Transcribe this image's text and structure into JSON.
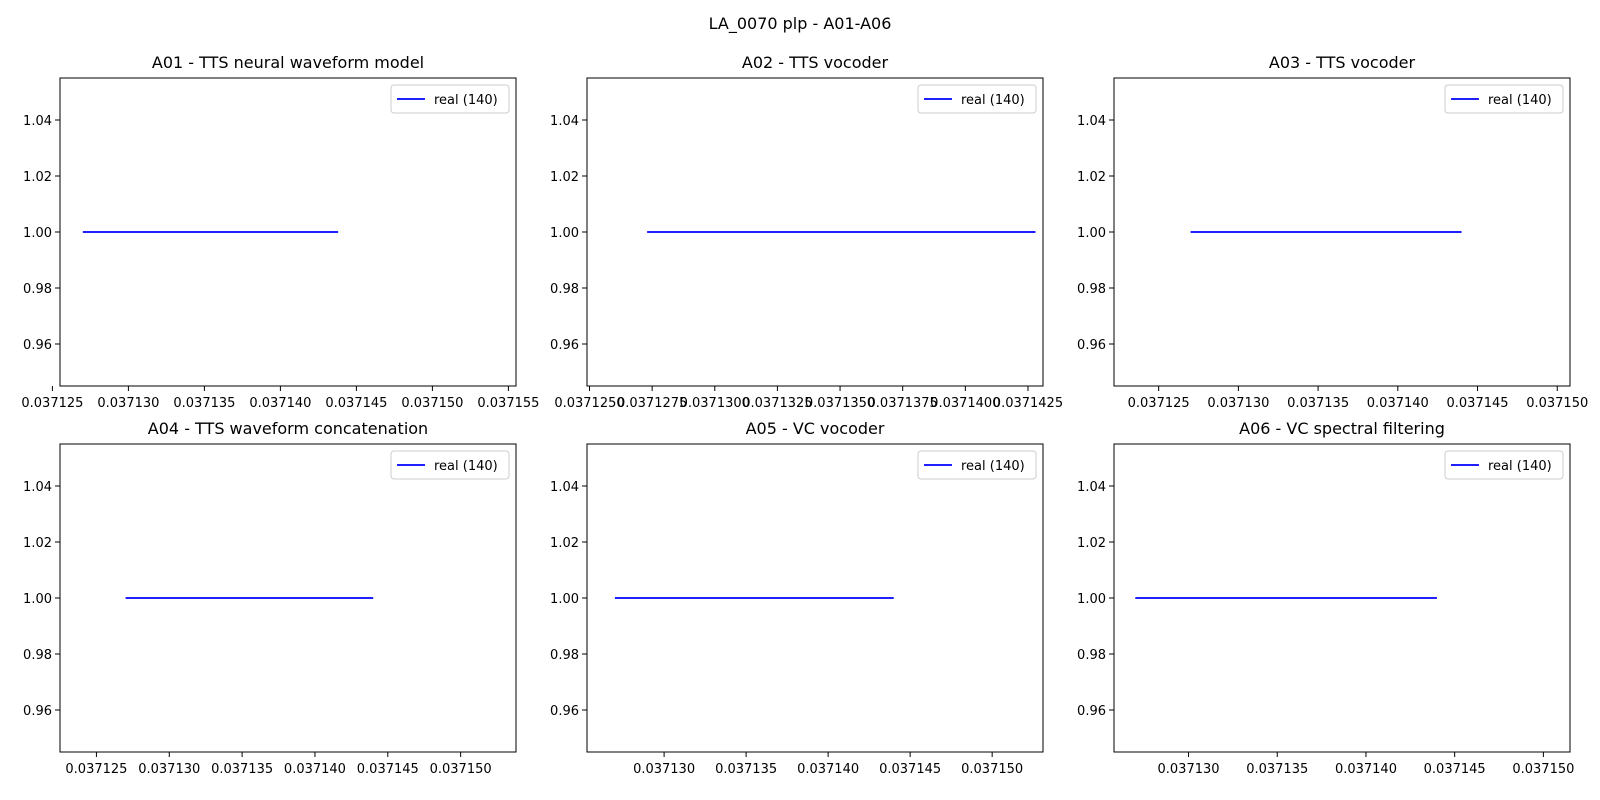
{
  "figure": {
    "title": "LA_0070 plp - A01-A06"
  },
  "chart_data": [
    {
      "type": "line",
      "title": "A01 - TTS neural waveform model",
      "xlabel": "",
      "ylabel": "",
      "xlim": [
        0.0371255,
        0.0371555
      ],
      "ylim": [
        0.945,
        1.055
      ],
      "x_ticks": [
        0.037125,
        0.03713,
        0.037135,
        0.03714,
        0.037145,
        0.03715,
        0.037155
      ],
      "x_tick_labels": [
        "0.037125",
        "0.037130",
        "0.037135",
        "0.037140",
        "0.037145",
        "0.037150",
        "0.037155"
      ],
      "y_ticks": [
        0.96,
        0.98,
        1.0,
        1.02,
        1.04
      ],
      "y_tick_labels": [
        "0.96",
        "0.98",
        "1.00",
        "1.02",
        "1.04"
      ],
      "grid": false,
      "legend": "top-right",
      "series": [
        {
          "name": "real (140)",
          "color": "#0000ff",
          "x": [
            0.037127,
            0.0371438
          ],
          "y": [
            1.0,
            1.0
          ]
        }
      ]
    },
    {
      "type": "line",
      "title": "A02 - TTS vocoder",
      "xlabel": "",
      "ylabel": "",
      "xlim": [
        0.0371249,
        0.0371431
      ],
      "ylim": [
        0.945,
        1.055
      ],
      "x_ticks": [
        0.037125,
        0.0371275,
        0.03713,
        0.0371325,
        0.037135,
        0.0371375,
        0.03714,
        0.0371425
      ],
      "x_tick_labels": [
        "0.0371250",
        "0.0371275",
        "0.0371300",
        "0.0371325",
        "0.0371350",
        "0.0371375",
        "0.0371400",
        "0.0371425"
      ],
      "y_ticks": [
        0.96,
        0.98,
        1.0,
        1.02,
        1.04
      ],
      "y_tick_labels": [
        "0.96",
        "0.98",
        "1.00",
        "1.02",
        "1.04"
      ],
      "grid": false,
      "legend": "top-right",
      "series": [
        {
          "name": "real (140)",
          "color": "#0000ff",
          "x": [
            0.0371273,
            0.0371428
          ],
          "y": [
            1.0,
            1.0
          ]
        }
      ]
    },
    {
      "type": "line",
      "title": "A03 - TTS vocoder",
      "xlabel": "",
      "ylabel": "",
      "xlim": [
        0.0371222,
        0.0371508
      ],
      "ylim": [
        0.945,
        1.055
      ],
      "x_ticks": [
        0.037125,
        0.03713,
        0.037135,
        0.03714,
        0.037145,
        0.03715
      ],
      "x_tick_labels": [
        "0.037125",
        "0.037130",
        "0.037135",
        "0.037140",
        "0.037145",
        "0.037150"
      ],
      "y_ticks": [
        0.96,
        0.98,
        1.0,
        1.02,
        1.04
      ],
      "y_tick_labels": [
        "0.96",
        "0.98",
        "1.00",
        "1.02",
        "1.04"
      ],
      "grid": false,
      "legend": "top-right",
      "series": [
        {
          "name": "real (140)",
          "color": "#0000ff",
          "x": [
            0.037127,
            0.037144
          ],
          "y": [
            1.0,
            1.0
          ]
        }
      ]
    },
    {
      "type": "line",
      "title": "A04 - TTS waveform concatenation",
      "xlabel": "",
      "ylabel": "",
      "xlim": [
        0.0371225,
        0.0371538
      ],
      "ylim": [
        0.945,
        1.055
      ],
      "x_ticks": [
        0.037125,
        0.03713,
        0.037135,
        0.03714,
        0.037145,
        0.03715
      ],
      "x_tick_labels": [
        "0.037125",
        "0.037130",
        "0.037135",
        "0.037140",
        "0.037145",
        "0.037150"
      ],
      "y_ticks": [
        0.96,
        0.98,
        1.0,
        1.02,
        1.04
      ],
      "y_tick_labels": [
        "0.96",
        "0.98",
        "1.00",
        "1.02",
        "1.04"
      ],
      "grid": false,
      "legend": "top-right",
      "series": [
        {
          "name": "real (140)",
          "color": "#0000ff",
          "x": [
            0.037127,
            0.037144
          ],
          "y": [
            1.0,
            1.0
          ]
        }
      ]
    },
    {
      "type": "line",
      "title": "A05 - VC vocoder",
      "xlabel": "",
      "ylabel": "",
      "xlim": [
        0.0371253,
        0.0371531
      ],
      "ylim": [
        0.945,
        1.055
      ],
      "x_ticks": [
        0.03713,
        0.037135,
        0.03714,
        0.037145,
        0.03715
      ],
      "x_tick_labels": [
        "0.037130",
        "0.037135",
        "0.037140",
        "0.037145",
        "0.037150"
      ],
      "y_ticks": [
        0.96,
        0.98,
        1.0,
        1.02,
        1.04
      ],
      "y_tick_labels": [
        "0.96",
        "0.98",
        "1.00",
        "1.02",
        "1.04"
      ],
      "grid": false,
      "legend": "top-right",
      "series": [
        {
          "name": "real (140)",
          "color": "#0000ff",
          "x": [
            0.037127,
            0.037144
          ],
          "y": [
            1.0,
            1.0
          ]
        }
      ]
    },
    {
      "type": "line",
      "title": "A06 - VC spectral filtering",
      "xlabel": "",
      "ylabel": "",
      "xlim": [
        0.0371258,
        0.0371515
      ],
      "ylim": [
        0.945,
        1.055
      ],
      "x_ticks": [
        0.03713,
        0.037135,
        0.03714,
        0.037145,
        0.03715
      ],
      "x_tick_labels": [
        "0.037130",
        "0.037135",
        "0.037140",
        "0.037145",
        "0.037150"
      ],
      "y_ticks": [
        0.96,
        0.98,
        1.0,
        1.02,
        1.04
      ],
      "y_tick_labels": [
        "0.96",
        "0.98",
        "1.00",
        "1.02",
        "1.04"
      ],
      "grid": false,
      "legend": "top-right",
      "series": [
        {
          "name": "real (140)",
          "color": "#0000ff",
          "x": [
            0.037127,
            0.037144
          ],
          "y": [
            1.0,
            1.0
          ]
        }
      ]
    }
  ]
}
